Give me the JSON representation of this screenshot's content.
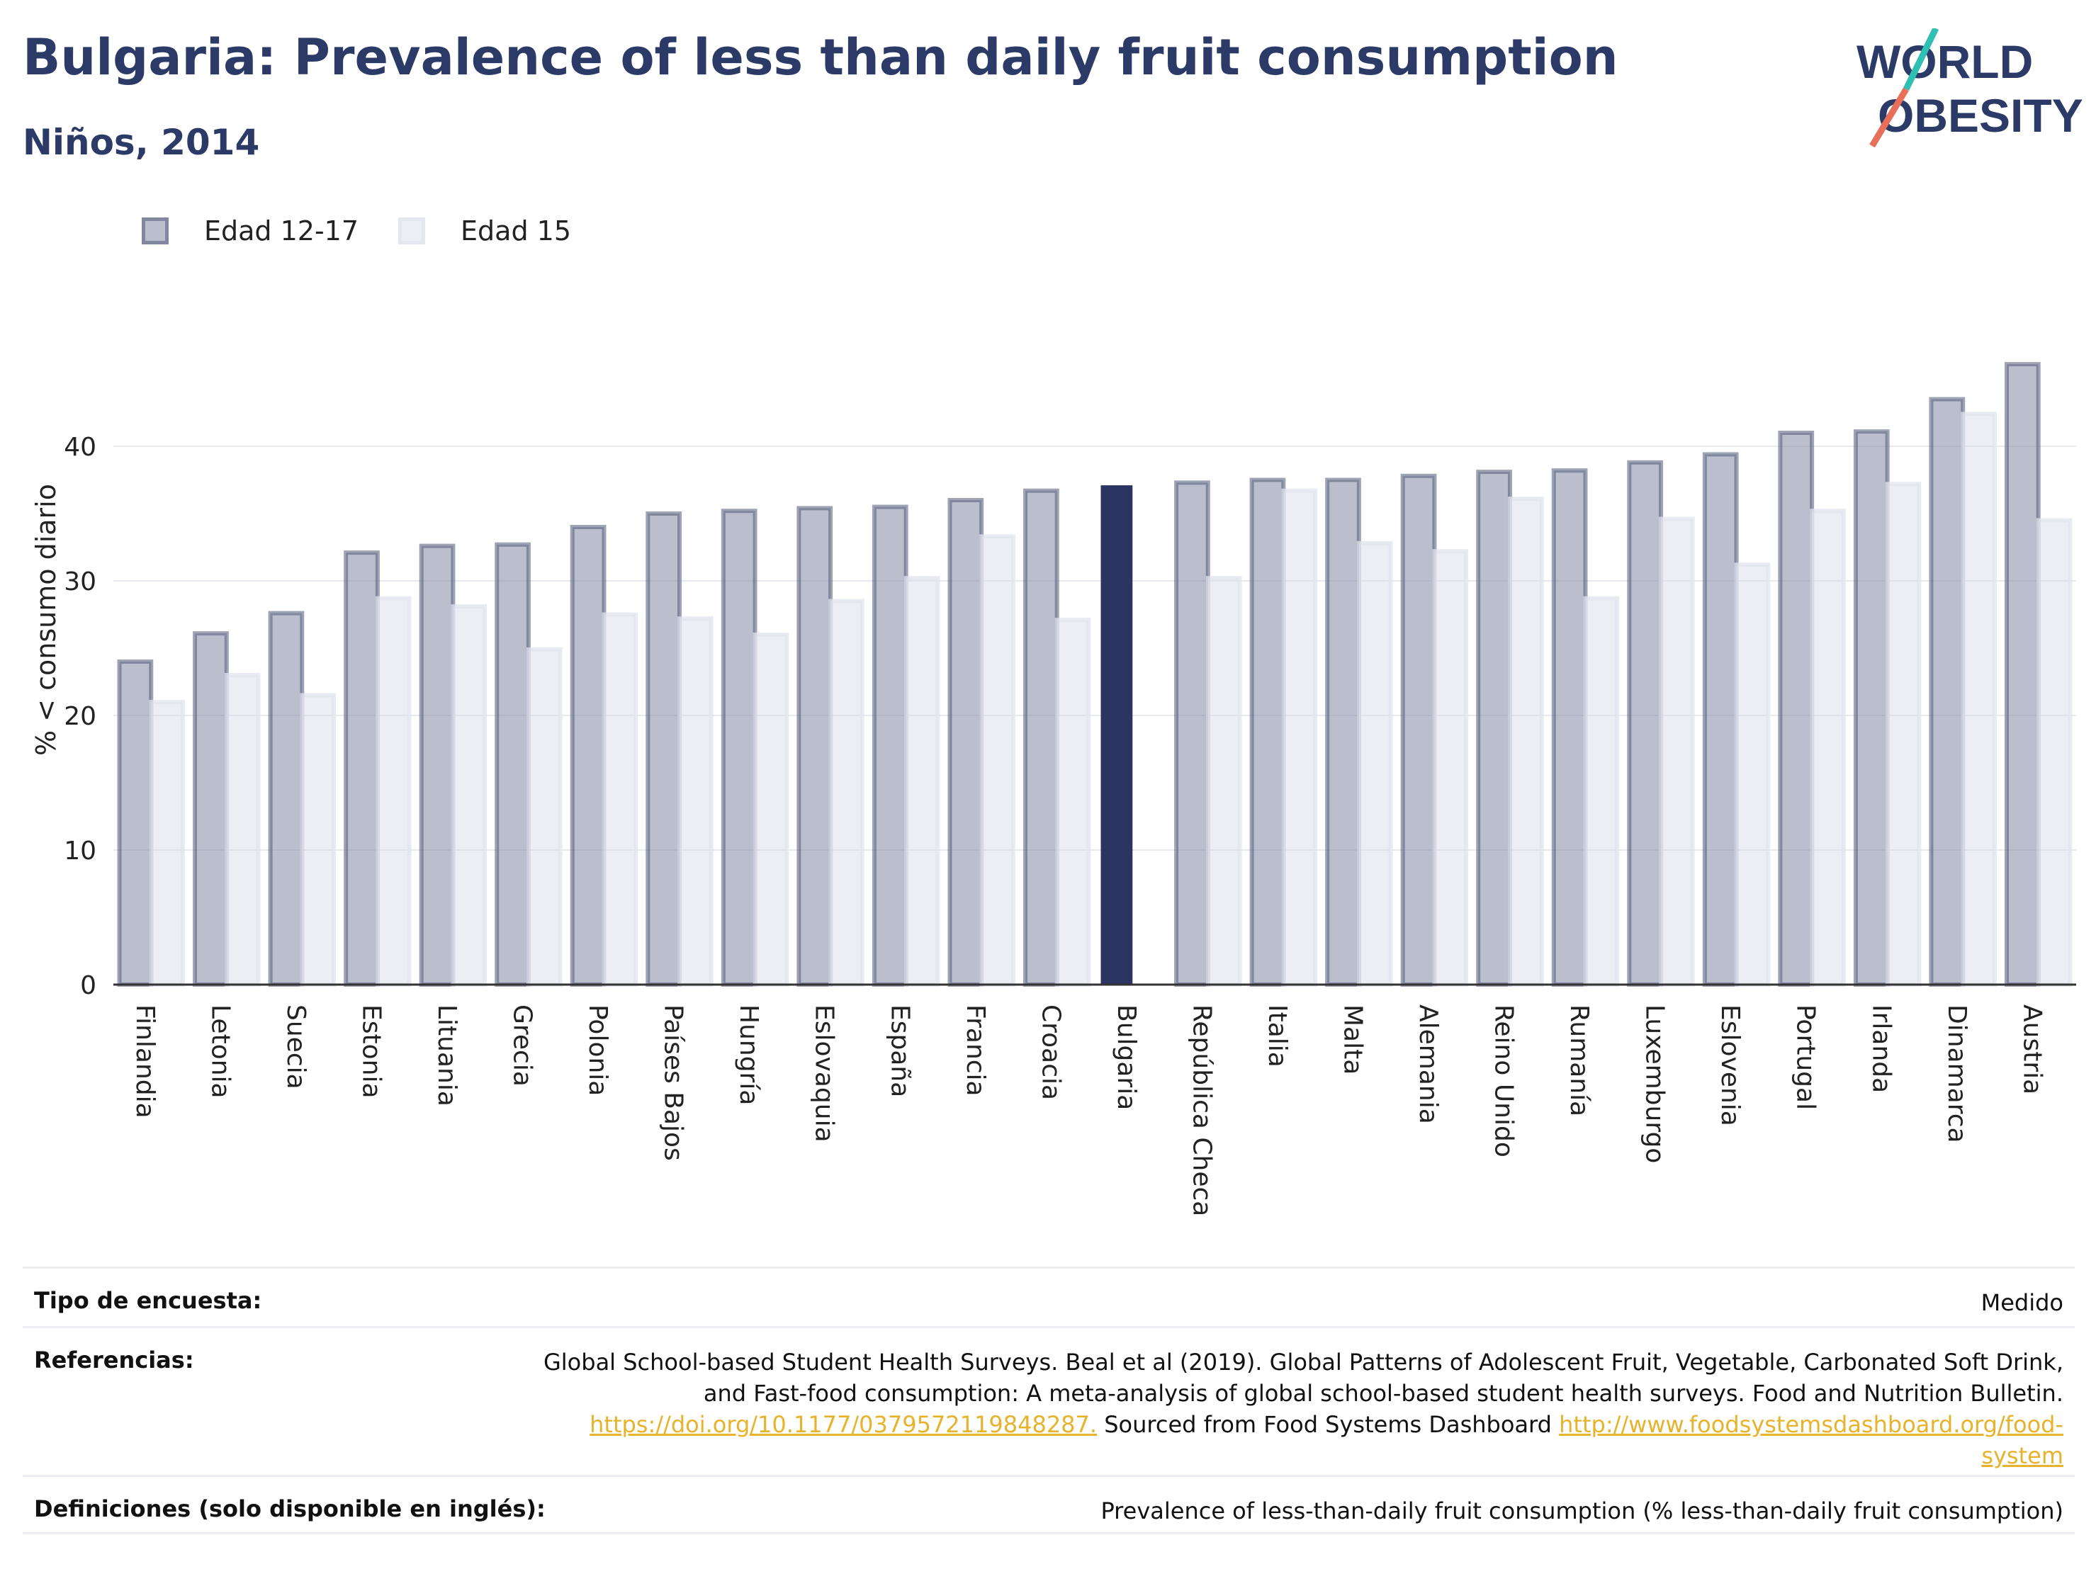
{
  "header": {
    "title": "Bulgaria: Prevalence of less than daily fruit consumption",
    "subtitle": "Niños, 2014"
  },
  "logo": {
    "line1": "WORLD",
    "line2": "OBESITY",
    "accent_teal": "#2fbfb3",
    "accent_coral": "#e8705a",
    "text_color": "#2b3a67"
  },
  "legend": {
    "items": [
      {
        "label": "Edad 12-17"
      },
      {
        "label": "Edad 15"
      }
    ]
  },
  "colors": {
    "series1_fill": "rgba(140,146,172,0.6)",
    "series1_stroke": "rgba(80,90,120,0.55)",
    "series2_fill": "rgba(215,218,230,0.45)",
    "series2_stroke": "rgba(225,228,238,0.75)",
    "highlight": "#2b3561",
    "grid": "#e8e9ee"
  },
  "chart_data": {
    "type": "bar",
    "ylabel": "% < consumo diario",
    "ylim": [
      0,
      50
    ],
    "yticks": [
      0,
      10,
      20,
      30,
      40
    ],
    "highlight_category": "Bulgaria",
    "categories": [
      "Finlandia",
      "Letonia",
      "Suecia",
      "Estonia",
      "Lituania",
      "Grecia",
      "Polonia",
      "Países Bajos",
      "Hungría",
      "Eslovaquia",
      "España",
      "Francia",
      "Croacia",
      "Bulgaria",
      "República Checa",
      "Italia",
      "Malta",
      "Alemania",
      "Reino Unido",
      "Rumanía",
      "Luxemburgo",
      "Eslovenia",
      "Portugal",
      "Irlanda",
      "Dinamarca",
      "Austria"
    ],
    "series": [
      {
        "name": "Edad 12-17",
        "values": [
          24.0,
          26.1,
          27.6,
          32.1,
          32.6,
          32.7,
          34.0,
          35.0,
          35.2,
          35.4,
          35.5,
          36.0,
          36.7,
          37.1,
          37.3,
          37.5,
          37.5,
          37.8,
          38.1,
          38.2,
          38.8,
          39.4,
          41.0,
          41.1,
          43.5,
          46.1
        ]
      },
      {
        "name": "Edad 15",
        "values": [
          21.0,
          23.0,
          21.5,
          28.7,
          28.1,
          24.9,
          27.5,
          27.2,
          26.0,
          28.5,
          30.2,
          33.3,
          27.1,
          null,
          30.2,
          36.7,
          32.8,
          32.2,
          36.1,
          28.7,
          34.6,
          31.2,
          35.2,
          37.2,
          42.4,
          34.5
        ]
      }
    ]
  },
  "info": {
    "survey_label": "Tipo de encuesta:",
    "survey_value": "Medido",
    "refs_label": "Referencias:",
    "refs_line1": "Global School-based Student Health Surveys. Beal et al (2019). Global Patterns of Adolescent Fruit, Vegetable, Carbonated Soft Drink,",
    "refs_line2": "and Fast-food consumption: A meta-analysis of global school-based student health surveys. Food and Nutrition Bulletin.",
    "refs_link1": "https://doi.org/10.1177/0379572119848287.",
    "refs_mid": " Sourced from Food Systems Dashboard ",
    "refs_link2a": "http://www.foodsystemsdashboard.org/food-",
    "refs_link2b": "system",
    "defs_label": "Definiciones (solo disponible en inglés):",
    "defs_value": "Prevalence of less-than-daily fruit consumption (% less-than-daily fruit consumption)"
  }
}
